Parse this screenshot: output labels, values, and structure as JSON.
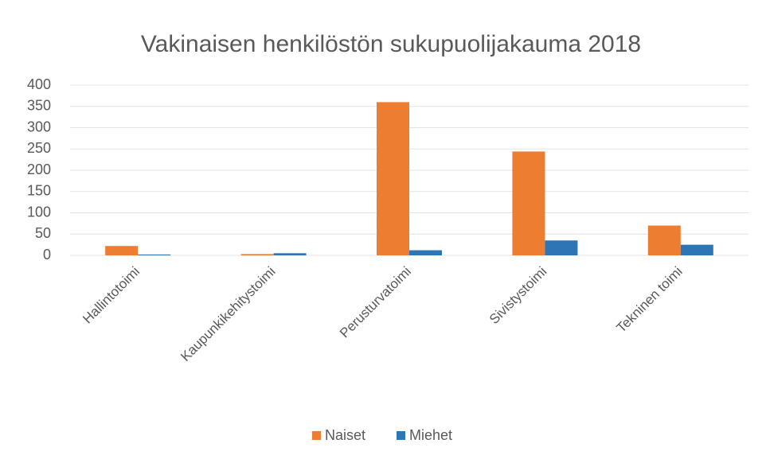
{
  "chart_data": {
    "type": "bar",
    "title": "Vakinaisen henkilöstön sukupuolijakauma 2018",
    "categories": [
      "Hallintotoimi",
      "Kaupunkikehitystoimi",
      "Perusturvatoimi",
      "Sivistystoimi",
      "Tekninen toimi"
    ],
    "series": [
      {
        "name": "Naiset",
        "color": "#ed7d31",
        "values": [
          22,
          3,
          360,
          244,
          70
        ]
      },
      {
        "name": "Miehet",
        "color": "#2e75b6",
        "values": [
          2,
          5,
          12,
          35,
          25
        ]
      }
    ],
    "ylim": [
      0,
      400
    ],
    "yticks": [
      0,
      50,
      100,
      150,
      200,
      250,
      300,
      350,
      400
    ],
    "grid": true,
    "legend": "bottom"
  }
}
